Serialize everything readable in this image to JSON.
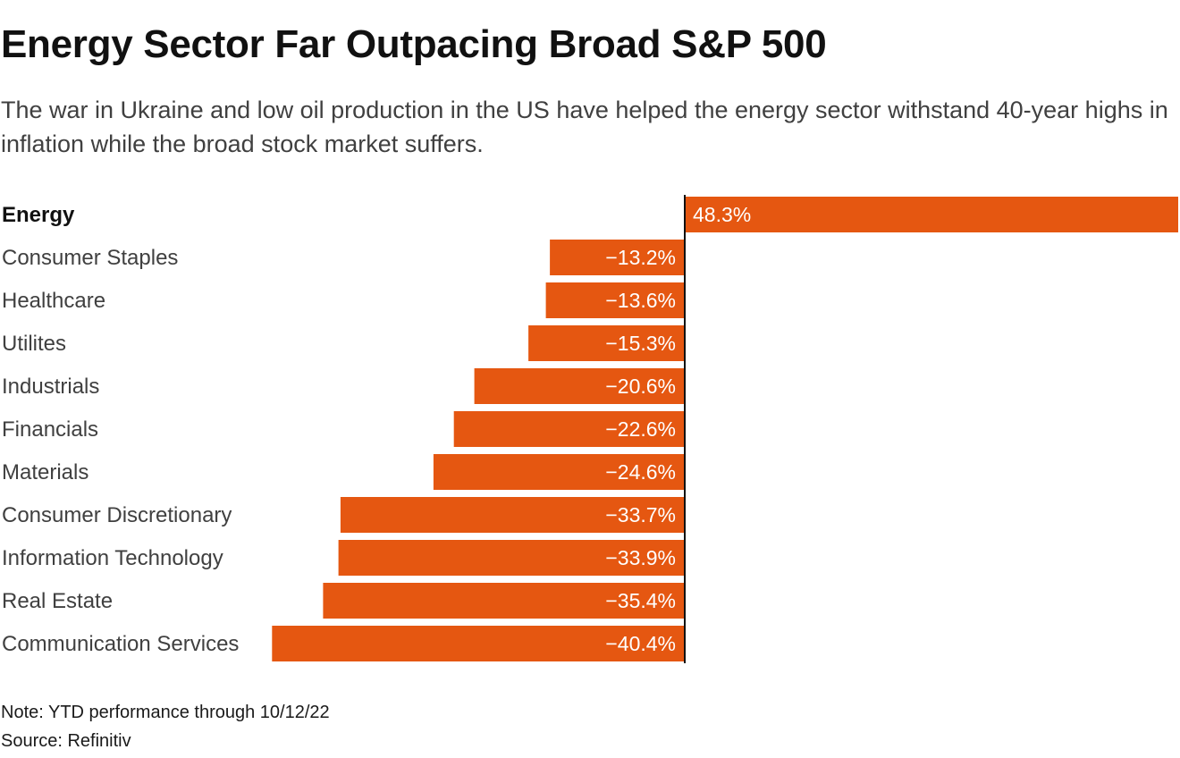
{
  "header": {
    "title": "Energy Sector Far Outpacing Broad S&P 500",
    "subtitle": "The war in Ukraine and low oil production in the US have helped the energy sector withstand 40-year highs in inflation while the broad stock market suffers."
  },
  "footer": {
    "note": "Note: YTD performance through 10/12/22",
    "source": "Source: Refinitiv"
  },
  "colors": {
    "bar": "#E55711",
    "baseline": "#111111"
  },
  "chart_data": {
    "type": "bar",
    "orientation": "horizontal",
    "title": "Energy Sector Far Outpacing Broad S&P 500",
    "xlabel": "",
    "ylabel": "",
    "unit": "%",
    "highlight": "Energy",
    "categories": [
      "Energy",
      "Consumer Staples",
      "Healthcare",
      "Utilites",
      "Industrials",
      "Financials",
      "Materials",
      "Consumer Discretionary",
      "Information Technology",
      "Real Estate",
      "Communication Services"
    ],
    "values": [
      48.3,
      -13.2,
      -13.6,
      -15.3,
      -20.6,
      -22.6,
      -24.6,
      -33.7,
      -33.9,
      -35.4,
      -40.4
    ],
    "labels": [
      "48.3%",
      "−13.2%",
      "−13.6%",
      "−15.3%",
      "−20.6%",
      "−22.6%",
      "−24.6%",
      "−33.7%",
      "−33.9%",
      "−35.4%",
      "−40.4%"
    ],
    "xlim": [
      -40.4,
      48.3
    ]
  }
}
